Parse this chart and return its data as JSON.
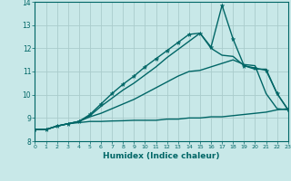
{
  "title": "",
  "xlabel": "Humidex (Indice chaleur)",
  "bg_color": "#c8e8e8",
  "grid_color": "#aacccc",
  "line_color": "#006666",
  "xlim": [
    0,
    23
  ],
  "ylim": [
    8,
    14
  ],
  "x_ticks": [
    0,
    1,
    2,
    3,
    4,
    5,
    6,
    7,
    8,
    9,
    10,
    11,
    12,
    13,
    14,
    15,
    16,
    17,
    18,
    19,
    20,
    21,
    22,
    23
  ],
  "y_ticks": [
    8,
    9,
    10,
    11,
    12,
    13,
    14
  ],
  "series": [
    {
      "x": [
        0,
        1,
        2,
        3,
        4,
        5,
        6,
        7,
        8,
        9,
        10,
        11,
        12,
        13,
        14,
        15,
        16,
        17,
        18,
        19,
        20,
        21,
        22,
        23
      ],
      "y": [
        8.5,
        8.5,
        8.65,
        8.75,
        8.8,
        8.85,
        8.85,
        8.87,
        8.88,
        8.9,
        8.9,
        8.9,
        8.95,
        8.95,
        9.0,
        9.0,
        9.05,
        9.05,
        9.1,
        9.15,
        9.2,
        9.25,
        9.35,
        9.4
      ],
      "marker": false,
      "linewidth": 1.0
    },
    {
      "x": [
        0,
        1,
        2,
        3,
        4,
        5,
        6,
        7,
        8,
        9,
        10,
        11,
        12,
        13,
        14,
        15,
        16,
        17,
        18,
        19,
        20,
        21,
        22,
        23
      ],
      "y": [
        8.5,
        8.5,
        8.65,
        8.75,
        8.85,
        9.05,
        9.2,
        9.4,
        9.6,
        9.8,
        10.05,
        10.3,
        10.55,
        10.8,
        11.0,
        11.05,
        11.2,
        11.35,
        11.5,
        11.3,
        11.25,
        10.05,
        9.4,
        9.35
      ],
      "marker": false,
      "linewidth": 1.0
    },
    {
      "x": [
        0,
        1,
        2,
        3,
        4,
        5,
        6,
        7,
        8,
        9,
        10,
        11,
        12,
        13,
        14,
        15,
        16,
        17,
        18,
        19,
        20,
        21,
        22,
        23
      ],
      "y": [
        8.5,
        8.5,
        8.65,
        8.75,
        8.85,
        9.1,
        9.5,
        9.85,
        10.2,
        10.5,
        10.85,
        11.2,
        11.6,
        11.95,
        12.3,
        12.65,
        12.0,
        11.7,
        11.65,
        11.25,
        11.1,
        11.1,
        10.05,
        9.35
      ],
      "marker": false,
      "linewidth": 1.0
    },
    {
      "x": [
        0,
        1,
        2,
        3,
        4,
        5,
        6,
        7,
        8,
        9,
        10,
        11,
        12,
        13,
        14,
        15,
        16,
        17,
        18,
        19,
        20,
        21,
        22,
        23
      ],
      "y": [
        8.5,
        8.5,
        8.65,
        8.75,
        8.85,
        9.15,
        9.6,
        10.05,
        10.45,
        10.8,
        11.2,
        11.55,
        11.9,
        12.25,
        12.6,
        12.65,
        12.05,
        13.85,
        12.4,
        11.25,
        11.15,
        11.05,
        10.05,
        9.35
      ],
      "marker": true,
      "linewidth": 1.0
    }
  ]
}
